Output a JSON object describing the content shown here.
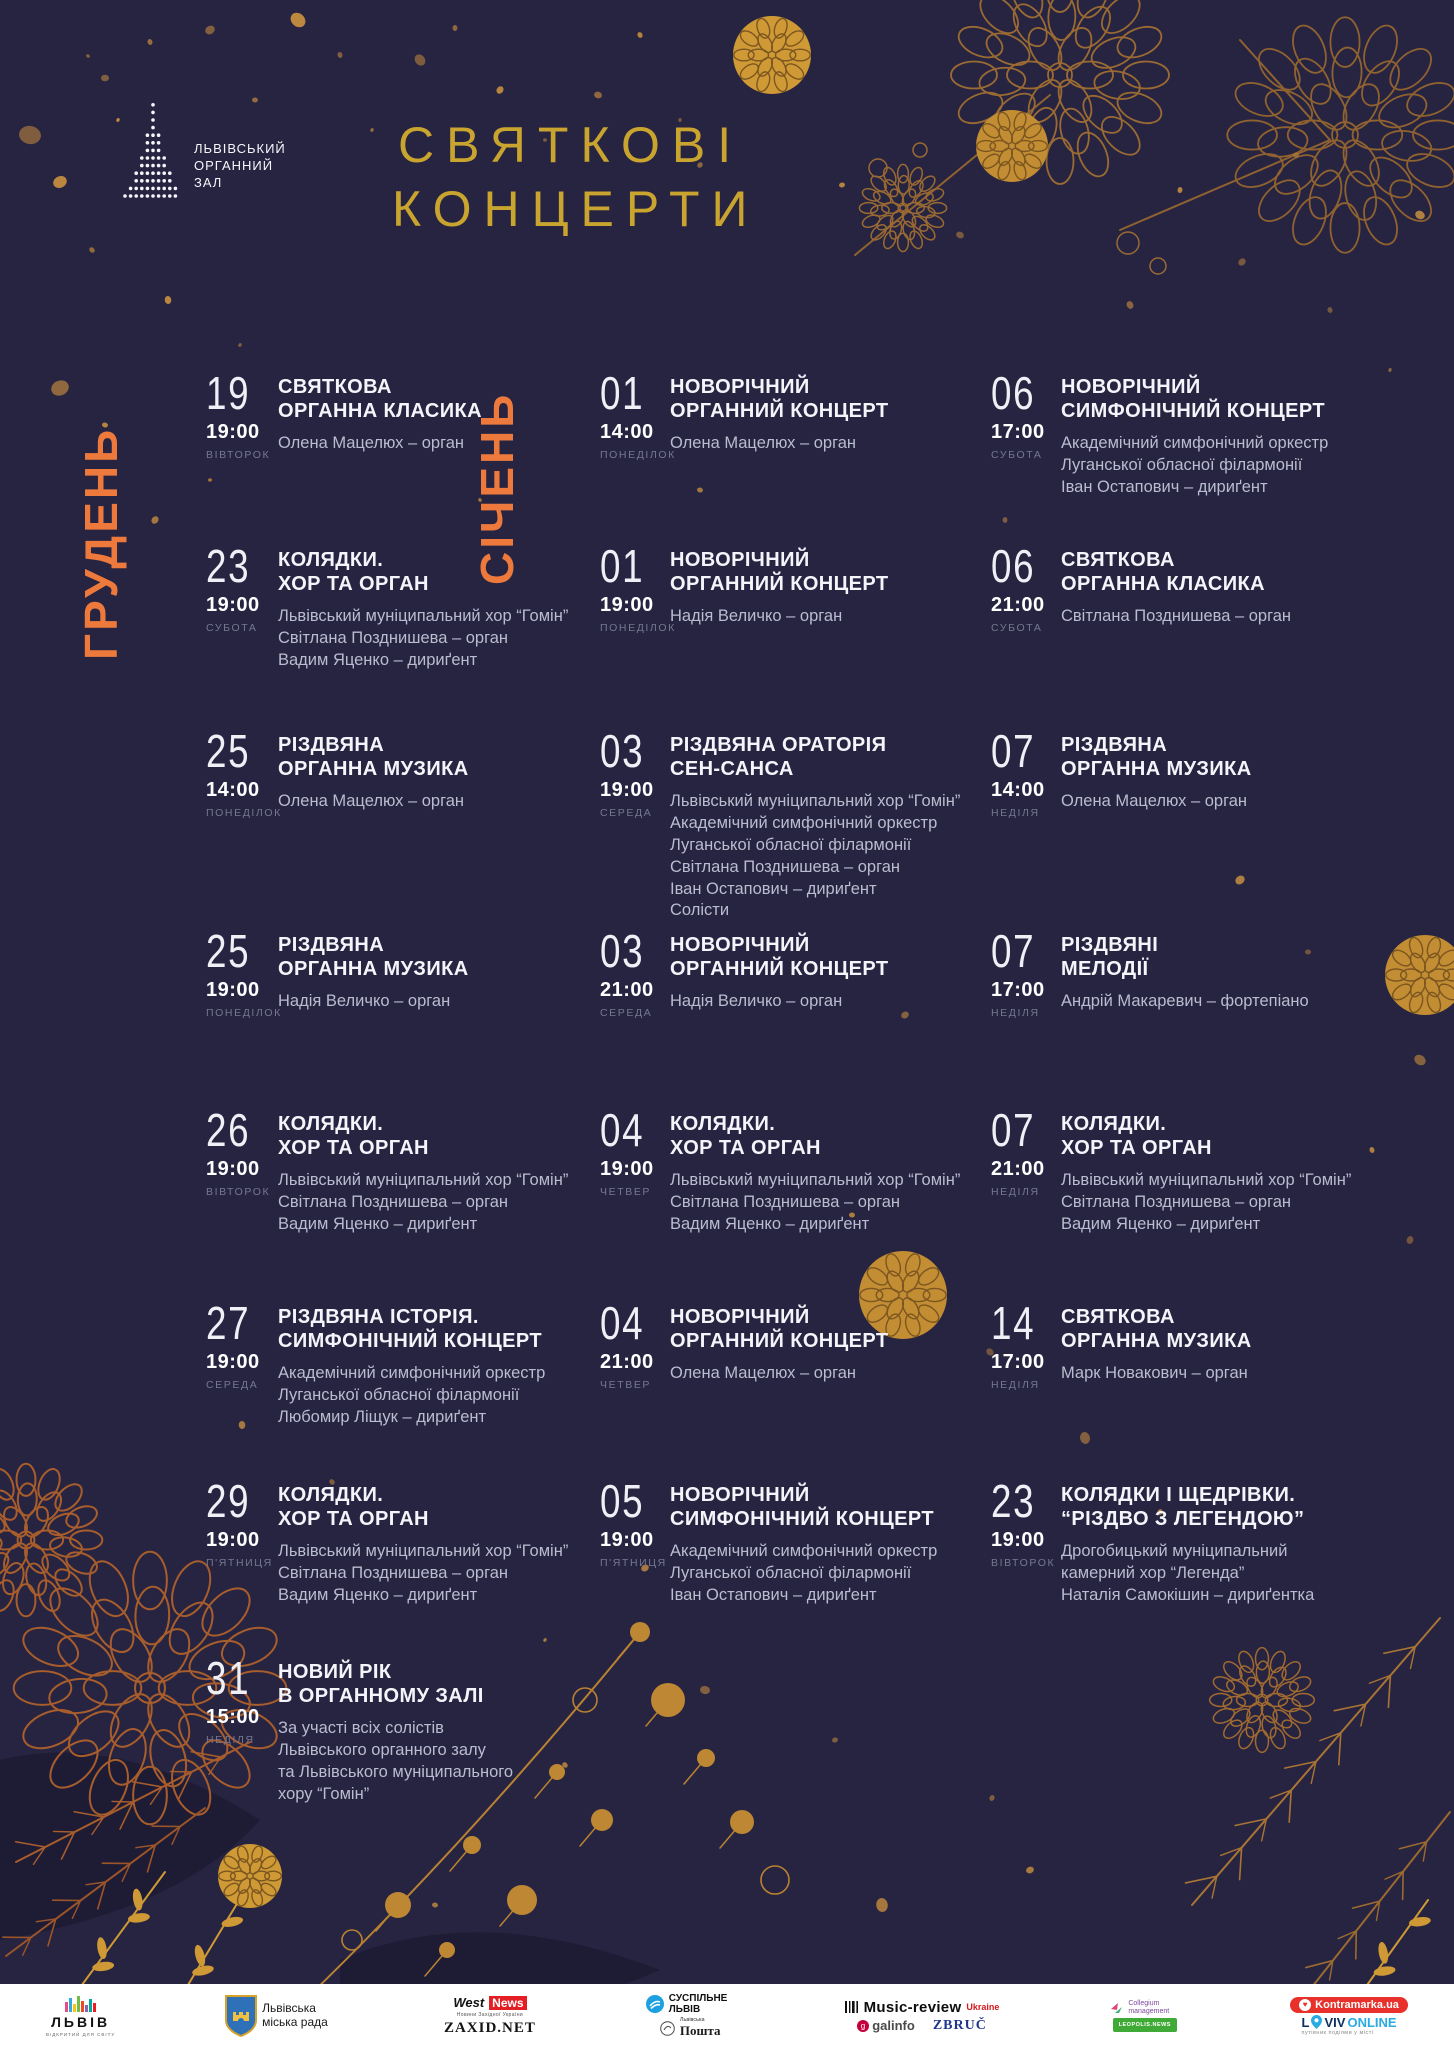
{
  "header": {
    "logo_lines": [
      "ЛЬВІВСЬКИЙ",
      "ОРГАННИЙ",
      "ЗАЛ"
    ],
    "title_line1": "СВЯТКОВІ",
    "title_line2": "КОНЦЕРТИ"
  },
  "colors": {
    "background": "#272441",
    "title_gold": "#c9a42e",
    "month_orange": "#ed7a3c",
    "text_primary": "#f4f5fa",
    "text_secondary": "#b9bdcf",
    "text_muted": "#75788f"
  },
  "columns": [
    {
      "month_label": "ГРУДЕНЬ",
      "events": [
        {
          "date": "19",
          "time": "19:00",
          "weekday": "ВІВТОРОК",
          "title": [
            "СВЯТКОВА",
            "ОРГАННА КЛАСИКА"
          ],
          "details": [
            "Олена Мацелюх – орган"
          ]
        },
        {
          "date": "23",
          "time": "19:00",
          "weekday": "СУБОТА",
          "title": [
            "КОЛЯДКИ.",
            "ХОР ТА ОРГАН"
          ],
          "details": [
            "Львівський муніципальний хор “Гомін”",
            "Світлана Позднишева – орган",
            "Вадим Яценко – дириґент"
          ]
        },
        {
          "date": "25",
          "time": "14:00",
          "weekday": "ПОНЕДІЛОК",
          "title": [
            "РІЗДВЯНА",
            "ОРГАННА МУЗИКА"
          ],
          "details": [
            "Олена Мацелюх – орган"
          ]
        },
        {
          "date": "25",
          "time": "19:00",
          "weekday": "ПОНЕДІЛОК",
          "title": [
            "РІЗДВЯНА",
            "ОРГАННА МУЗИКА"
          ],
          "details": [
            "Надія Величко – орган"
          ]
        },
        {
          "date": "26",
          "time": "19:00",
          "weekday": "ВІВТОРОК",
          "title": [
            "КОЛЯДКИ.",
            "ХОР ТА ОРГАН"
          ],
          "details": [
            "Львівський муніципальний хор “Гомін”",
            "Світлана Позднишева – орган",
            "Вадим Яценко – дириґент"
          ]
        },
        {
          "date": "27",
          "time": "19:00",
          "weekday": "СЕРЕДА",
          "title": [
            "РІЗДВЯНА ІСТОРІЯ.",
            "СИМФОНІЧНИЙ КОНЦЕРТ"
          ],
          "details": [
            "Академічний симфонічний оркестр",
            "Луганської обласної філармонії",
            "Любомир Ліщук – дириґент"
          ]
        },
        {
          "date": "29",
          "time": "19:00",
          "weekday": "П'ЯТНИЦЯ",
          "title": [
            "КОЛЯДКИ.",
            "ХОР ТА ОРГАН"
          ],
          "details": [
            "Львівський муніципальний хор “Гомін”",
            "Світлана Позднишева – орган",
            "Вадим Яценко – дириґент"
          ]
        },
        {
          "date": "31",
          "time": "15:00",
          "weekday": "НЕДІЛЯ",
          "title": [
            "НОВИЙ РІК",
            "В ОРГАННОМУ ЗАЛІ"
          ],
          "details": [
            "За участі всіх солістів",
            "Львівського органного залу",
            "та Львівського муніципального",
            "хору “Гомін”"
          ]
        }
      ]
    },
    {
      "month_label": "СІЧЕНЬ",
      "events": [
        {
          "date": "01",
          "time": "14:00",
          "weekday": "ПОНЕДІЛОК",
          "title": [
            "НОВОРІЧНИЙ",
            "ОРГАННИЙ КОНЦЕРТ"
          ],
          "details": [
            "Олена Мацелюх – орган"
          ]
        },
        {
          "date": "01",
          "time": "19:00",
          "weekday": "ПОНЕДІЛОК",
          "title": [
            "НОВОРІЧНИЙ",
            "ОРГАННИЙ КОНЦЕРТ"
          ],
          "details": [
            "Надія Величко – орган"
          ]
        },
        {
          "date": "03",
          "time": "19:00",
          "weekday": "СЕРЕДА",
          "title": [
            "РІЗДВЯНА ОРАТОРІЯ",
            "СЕН-САНСА"
          ],
          "details": [
            "Львівський муніципальний хор “Гомін”",
            "Академічний симфонічний оркестр",
            "Луганської обласної філармонії",
            "Світлана Позднишева – орган",
            "Іван Остапович – дириґент",
            "Солісти"
          ]
        },
        {
          "date": "03",
          "time": "21:00",
          "weekday": "СЕРЕДА",
          "title": [
            "НОВОРІЧНИЙ",
            "ОРГАННИЙ КОНЦЕРТ"
          ],
          "details": [
            "Надія Величко – орган"
          ]
        },
        {
          "date": "04",
          "time": "19:00",
          "weekday": "ЧЕТВЕР",
          "title": [
            "КОЛЯДКИ.",
            "ХОР ТА ОРГАН"
          ],
          "details": [
            "Львівський муніципальний хор “Гомін”",
            "Світлана Позднишева – орган",
            "Вадим Яценко – дириґент"
          ]
        },
        {
          "date": "04",
          "time": "21:00",
          "weekday": "ЧЕТВЕР",
          "title": [
            "НОВОРІЧНИЙ",
            "ОРГАННИЙ КОНЦЕРТ"
          ],
          "details": [
            "Олена Мацелюх – орган"
          ]
        },
        {
          "date": "05",
          "time": "19:00",
          "weekday": "П'ЯТНИЦЯ",
          "title": [
            "НОВОРІЧНИЙ",
            "СИМФОНІЧНИЙ КОНЦЕРТ"
          ],
          "details": [
            "Академічний симфонічний оркестр",
            "Луганської обласної філармонії",
            "Іван Остапович – дириґент"
          ]
        }
      ]
    },
    {
      "month_label": "",
      "events": [
        {
          "date": "06",
          "time": "17:00",
          "weekday": "СУБОТА",
          "title": [
            "НОВОРІЧНИЙ",
            "СИМФОНІЧНИЙ КОНЦЕРТ"
          ],
          "details": [
            "Академічний симфонічний оркестр",
            "Луганської обласної філармонії",
            "Іван Остапович – дириґент"
          ]
        },
        {
          "date": "06",
          "time": "21:00",
          "weekday": "СУБОТА",
          "title": [
            "СВЯТКОВА",
            "ОРГАННА КЛАСИКА"
          ],
          "details": [
            "Світлана Позднишева – орган"
          ]
        },
        {
          "date": "07",
          "time": "14:00",
          "weekday": "НЕДІЛЯ",
          "title": [
            "РІЗДВЯНА",
            "ОРГАННА МУЗИКА"
          ],
          "details": [
            "Олена Мацелюх – орган"
          ]
        },
        {
          "date": "07",
          "time": "17:00",
          "weekday": "НЕДІЛЯ",
          "title": [
            "РІЗДВЯНІ",
            "МЕЛОДІЇ"
          ],
          "details": [
            "Андрій Макаревич – фортепіано"
          ]
        },
        {
          "date": "07",
          "time": "21:00",
          "weekday": "НЕДІЛЯ",
          "title": [
            "КОЛЯДКИ.",
            "ХОР ТА ОРГАН"
          ],
          "details": [
            "Львівський муніципальний хор “Гомін”",
            "Світлана Позднишева – орган",
            "Вадим Яценко – дириґент"
          ]
        },
        {
          "date": "14",
          "time": "17:00",
          "weekday": "НЕДІЛЯ",
          "title": [
            "СВЯТКОВА",
            "ОРГАННА МУЗИКА"
          ],
          "details": [
            "Марк Новакович – орган"
          ]
        },
        {
          "date": "23",
          "time": "19:00",
          "weekday": "ВІВТОРОК",
          "title": [
            "КОЛЯДКИ І ЩЕДРІВКИ.",
            "“РІЗДВО З ЛЕГЕНДОЮ”"
          ],
          "details": [
            "Дрогобицький муніципальний",
            "камерний хор “Легенда”",
            "Наталія Самокішин – дириґентка"
          ]
        }
      ]
    }
  ],
  "footer": {
    "lviv_city": {
      "label": "ЛЬВІВ",
      "tagline": "ВІДКРИТИЙ ДЛЯ СВІТУ"
    },
    "city_council": {
      "label": "Львівська міська рада"
    },
    "westnews": {
      "label_west": "West",
      "label_news": "News",
      "tagline": "Новини Західної України"
    },
    "zaxid": {
      "label": "ZAXID.NET"
    },
    "suspilne": {
      "label": "СУСПІЛЬНЕ ЛЬВІВ"
    },
    "poshta": {
      "label_small": "Львівська",
      "label": "Пошта"
    },
    "music_review": {
      "label": "Music-review",
      "tagline": "Ukraine"
    },
    "galinfo": {
      "label": "galinfo"
    },
    "zbruc": {
      "label": "ZBRUČ"
    },
    "collegium": {
      "label": "Collegium management"
    },
    "leopolis": {
      "label": "LEOPOLIS.NEWS"
    },
    "kontramarka": {
      "label": "Kontramarka.ua"
    },
    "lviv_online": {
      "label_l": "L",
      "label_viv": "VIV",
      "label_online": "ONLINE",
      "tagline": "путівник подіями у місті"
    }
  }
}
